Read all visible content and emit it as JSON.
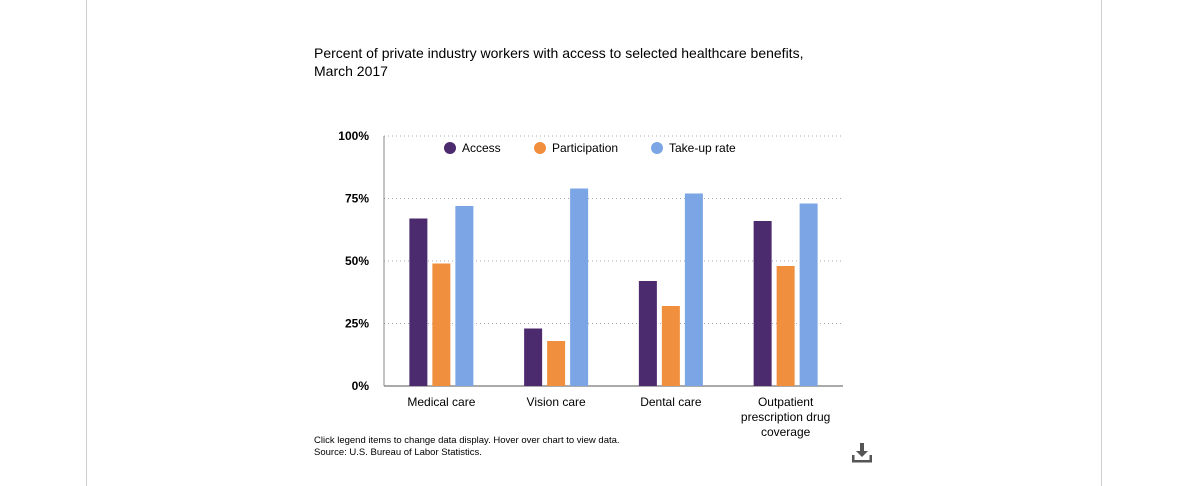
{
  "notes": {
    "instructions": "Click legend items to change data display. Hover over chart to view data.",
    "source": "Source: U.S. Bureau of Labor Statistics."
  },
  "icons": {
    "download": "download-icon"
  },
  "chart_data": {
    "type": "bar",
    "title": "Percent of private industry workers with access to selected healthcare benefits, March 2017",
    "title_lines": [
      "Percent of private industry workers with access to selected healthcare benefits,",
      "March 2017"
    ],
    "categories": [
      "Medical care",
      "Vision care",
      "Dental care",
      "Outpatient prescription drug coverage"
    ],
    "category_lines": [
      [
        "Medical care"
      ],
      [
        "Vision care"
      ],
      [
        "Dental care"
      ],
      [
        "Outpatient",
        "prescription drug",
        "coverage"
      ]
    ],
    "series": [
      {
        "name": "Access",
        "color": "#4b2a6e",
        "values": [
          67,
          23,
          42,
          66
        ]
      },
      {
        "name": "Participation",
        "color": "#f08f3e",
        "values": [
          49,
          18,
          32,
          48
        ]
      },
      {
        "name": "Take-up rate",
        "color": "#7ba5e5",
        "values": [
          72,
          79,
          77,
          73
        ]
      }
    ],
    "ylim": [
      0,
      100
    ],
    "yticks": [
      0,
      25,
      50,
      75,
      100
    ],
    "ytick_labels": [
      "0%",
      "25%",
      "50%",
      "75%",
      "100%"
    ],
    "xlabel": "",
    "ylabel": "",
    "grid": true,
    "legend_position": "top"
  }
}
